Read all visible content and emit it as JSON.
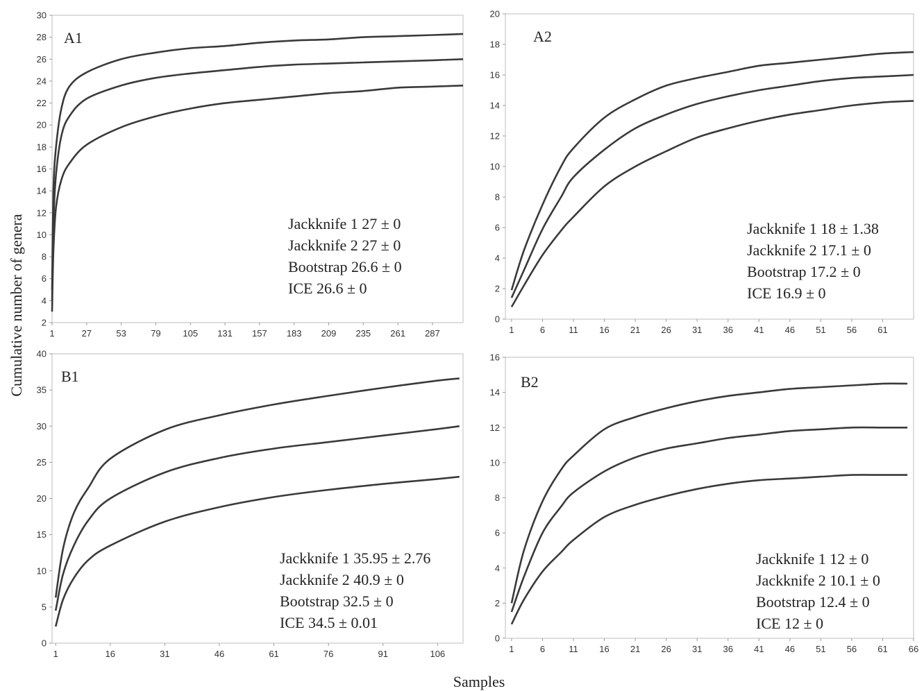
{
  "figure": {
    "ylabel": "Cumulative number of genera",
    "xlabel": "Samples"
  },
  "chart_data": [
    {
      "type": "line",
      "panel": "A1",
      "xlim": [
        1,
        310
      ],
      "ylim": [
        2,
        30
      ],
      "x_ticks": [
        1,
        27,
        53,
        79,
        105,
        131,
        157,
        183,
        209,
        235,
        261,
        287
      ],
      "y_ticks": [
        2,
        4,
        6,
        8,
        10,
        12,
        14,
        16,
        18,
        20,
        22,
        24,
        26,
        28,
        30
      ],
      "series": [
        {
          "x": [
            1,
            2,
            4,
            8,
            14,
            27,
            53,
            79,
            105,
            131,
            157,
            183,
            209,
            235,
            261,
            287,
            310
          ],
          "values": [
            5,
            14,
            18,
            21.5,
            23.5,
            24.8,
            26,
            26.6,
            27,
            27.2,
            27.5,
            27.7,
            27.8,
            28,
            28.1,
            28.2,
            28.3
          ]
        },
        {
          "x": [
            1,
            2,
            4,
            8,
            14,
            27,
            53,
            79,
            105,
            131,
            157,
            183,
            209,
            235,
            261,
            287,
            310
          ],
          "values": [
            4,
            11,
            15.5,
            19,
            20.8,
            22.4,
            23.6,
            24.3,
            24.7,
            25,
            25.3,
            25.5,
            25.6,
            25.7,
            25.8,
            25.9,
            26
          ]
        },
        {
          "x": [
            1,
            2,
            4,
            8,
            14,
            27,
            53,
            79,
            105,
            131,
            157,
            183,
            209,
            235,
            261,
            287,
            310
          ],
          "values": [
            3,
            8.5,
            12.5,
            15,
            16.5,
            18.2,
            19.8,
            20.8,
            21.5,
            22,
            22.3,
            22.6,
            22.9,
            23.1,
            23.4,
            23.5,
            23.6
          ]
        }
      ],
      "annotations": [
        "Jackknife 1 27 ± 0",
        "Jackknife 2 27 ± 0",
        "Bootstrap 26.6 ± 0",
        "ICE 26.6 ± 0"
      ]
    },
    {
      "type": "line",
      "panel": "A2",
      "xlim": [
        0,
        66
      ],
      "ylim": [
        0,
        20
      ],
      "x_ticks": [
        1,
        6,
        11,
        16,
        21,
        26,
        31,
        36,
        41,
        46,
        51,
        56,
        61
      ],
      "y_ticks": [
        0,
        2,
        4,
        6,
        8,
        10,
        12,
        14,
        16,
        18,
        20
      ],
      "series": [
        {
          "x": [
            1,
            3,
            6,
            9,
            11,
            16,
            21,
            26,
            31,
            36,
            41,
            46,
            51,
            56,
            61,
            66
          ],
          "values": [
            1.9,
            4.5,
            7.5,
            10,
            11.2,
            13.2,
            14.4,
            15.3,
            15.8,
            16.2,
            16.6,
            16.8,
            17,
            17.2,
            17.4,
            17.5
          ]
        },
        {
          "x": [
            1,
            3,
            6,
            9,
            11,
            16,
            21,
            26,
            31,
            36,
            41,
            46,
            51,
            56,
            61,
            66
          ],
          "values": [
            1.4,
            3.2,
            5.9,
            8,
            9.3,
            11.1,
            12.5,
            13.4,
            14.1,
            14.6,
            15,
            15.3,
            15.6,
            15.8,
            15.9,
            16
          ]
        },
        {
          "x": [
            1,
            3,
            6,
            9,
            11,
            16,
            21,
            26,
            31,
            36,
            41,
            46,
            51,
            56,
            61,
            66
          ],
          "values": [
            0.8,
            2.2,
            4.2,
            5.8,
            6.7,
            8.7,
            10,
            11,
            11.9,
            12.5,
            13,
            13.4,
            13.7,
            14,
            14.2,
            14.3
          ]
        }
      ],
      "annotations": [
        "Jackknife 1 18 ± 1.38",
        "Jackknife 2 17.1 ± 0",
        "Bootstrap 17.2 ± 0",
        "ICE 16.9 ± 0"
      ]
    },
    {
      "type": "line",
      "panel": "B1",
      "xlim": [
        0,
        113
      ],
      "ylim": [
        0,
        40
      ],
      "x_ticks": [
        1,
        16,
        31,
        46,
        61,
        76,
        91,
        106
      ],
      "y_ticks": [
        0,
        5,
        10,
        15,
        20,
        25,
        30,
        35,
        40
      ],
      "series": [
        {
          "x": [
            1,
            3,
            6,
            10,
            16,
            31,
            46,
            61,
            76,
            91,
            106,
            112
          ],
          "values": [
            6.3,
            13,
            18,
            21.5,
            25.5,
            29.5,
            31.5,
            33,
            34.2,
            35.3,
            36.3,
            36.6
          ]
        },
        {
          "x": [
            1,
            3,
            6,
            10,
            16,
            31,
            46,
            61,
            76,
            91,
            106,
            112
          ],
          "values": [
            4.5,
            9.5,
            13.5,
            17,
            20,
            23.6,
            25.6,
            26.9,
            27.8,
            28.7,
            29.6,
            30
          ]
        },
        {
          "x": [
            1,
            3,
            6,
            10,
            16,
            31,
            46,
            61,
            76,
            91,
            106,
            112
          ],
          "values": [
            2.3,
            6,
            9,
            11.5,
            13.5,
            16.8,
            18.8,
            20.2,
            21.2,
            22,
            22.7,
            23
          ]
        }
      ],
      "annotations": [
        "Jackknife 1 35.95 ± 2.76",
        "Jackknife 2 40.9 ± 0",
        "Bootstrap 32.5 ± 0",
        "ICE 34.5 ± 0.01"
      ]
    },
    {
      "type": "line",
      "panel": "B2",
      "xlim": [
        0,
        66
      ],
      "ylim": [
        0,
        16
      ],
      "x_ticks": [
        1,
        6,
        11,
        16,
        21,
        26,
        31,
        36,
        41,
        46,
        51,
        56,
        61,
        66
      ],
      "y_ticks": [
        0,
        2,
        4,
        6,
        8,
        10,
        12,
        14,
        16
      ],
      "series": [
        {
          "x": [
            1,
            3,
            6,
            9,
            11,
            16,
            21,
            26,
            31,
            36,
            41,
            46,
            51,
            56,
            61,
            65
          ],
          "values": [
            2,
            5,
            7.8,
            9.6,
            10.4,
            11.9,
            12.6,
            13.1,
            13.5,
            13.8,
            14,
            14.2,
            14.3,
            14.4,
            14.5,
            14.5
          ]
        },
        {
          "x": [
            1,
            3,
            6,
            9,
            11,
            16,
            21,
            26,
            31,
            36,
            41,
            46,
            51,
            56,
            61,
            65
          ],
          "values": [
            1.5,
            3.5,
            6,
            7.5,
            8.3,
            9.5,
            10.3,
            10.8,
            11.1,
            11.4,
            11.6,
            11.8,
            11.9,
            12,
            12,
            12
          ]
        },
        {
          "x": [
            1,
            3,
            6,
            9,
            11,
            16,
            21,
            26,
            31,
            36,
            41,
            46,
            51,
            56,
            61,
            65
          ],
          "values": [
            0.8,
            2.2,
            3.8,
            4.9,
            5.6,
            6.9,
            7.6,
            8.1,
            8.5,
            8.8,
            9,
            9.1,
            9.2,
            9.3,
            9.3,
            9.3
          ]
        }
      ],
      "annotations": [
        "Jackknife 1 12 ± 0",
        "Jackknife 2 10.1 ± 0",
        "Bootstrap 12.4 ± 0",
        "ICE 12 ± 0"
      ]
    }
  ]
}
